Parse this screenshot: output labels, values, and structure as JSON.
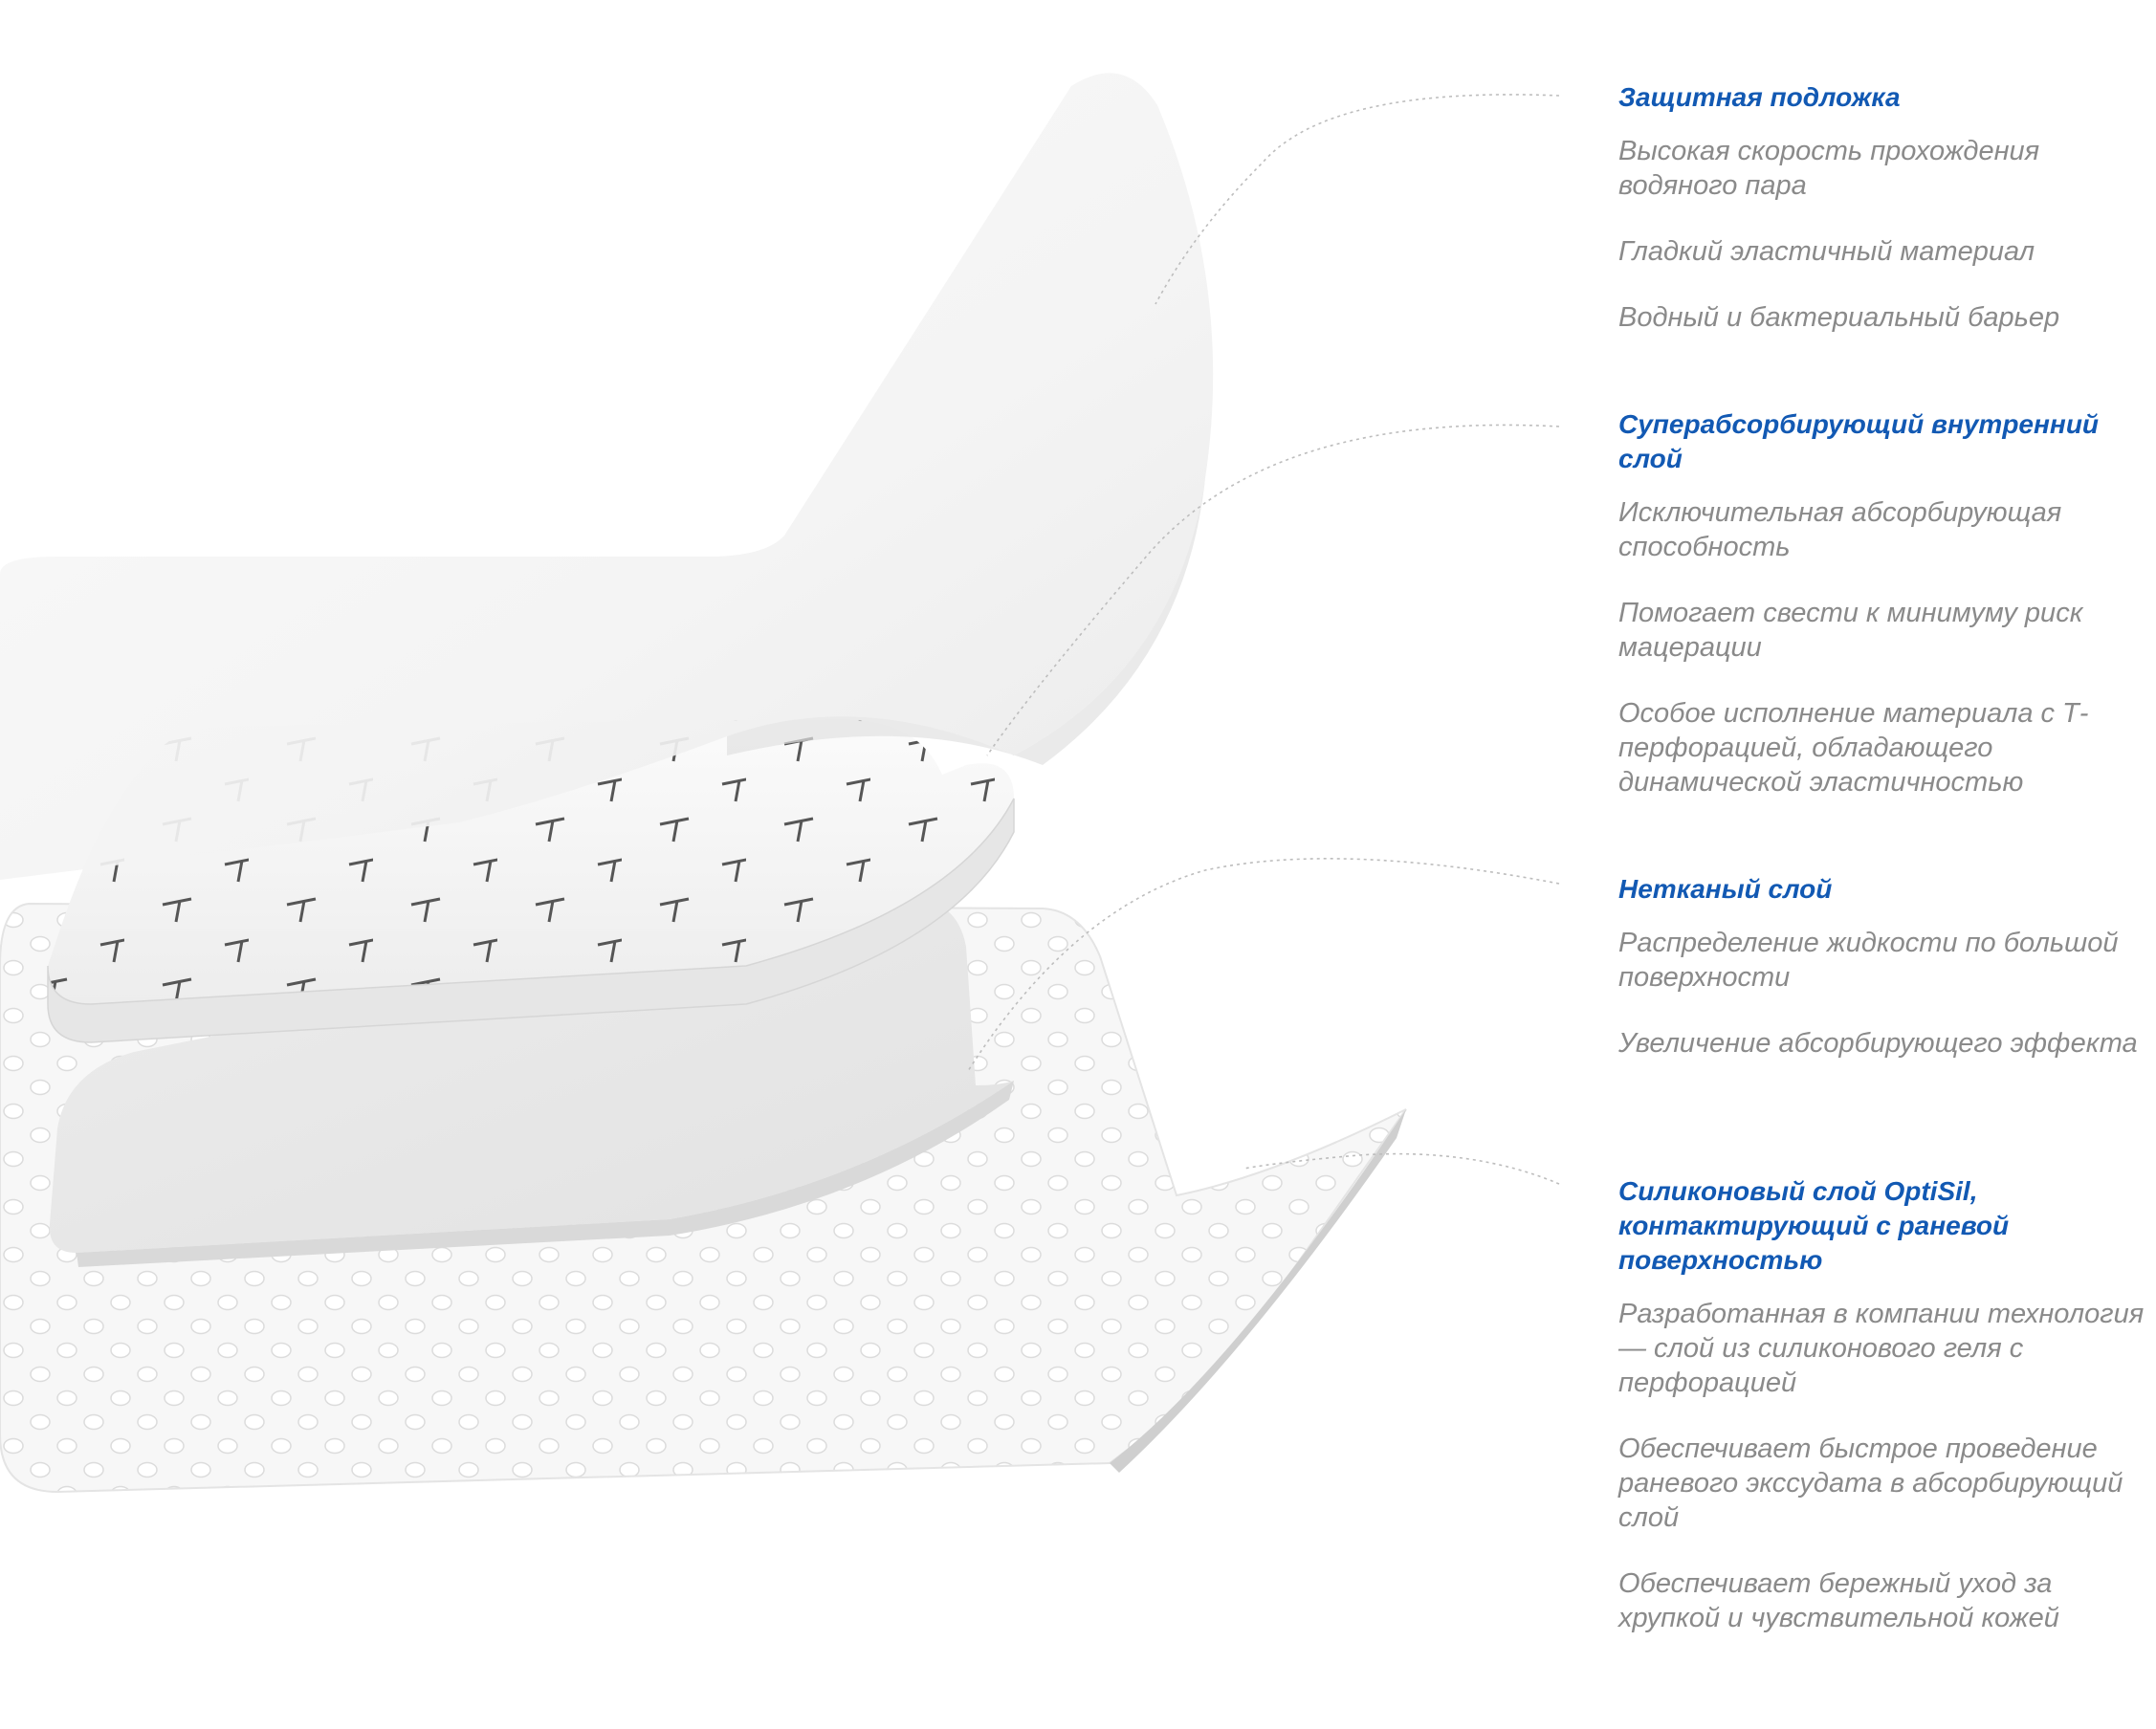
{
  "layers": [
    {
      "id": "protective-backing",
      "title": "Защитная подложка",
      "points": [
        "Высокая скорость прохождения водяного пара",
        "Гладкий эластичный материал",
        "Водный и бактериальный барьер"
      ]
    },
    {
      "id": "superabsorbent-core",
      "title": "Суперабсорбирующий внутренний слой",
      "points": [
        "Исключительная абсорбирующая способность",
        "Помогает свести к минимуму риск мацерации",
        "Особое исполнение материала с Т-перфорацией, обладающего динамической эластичностью"
      ]
    },
    {
      "id": "nonwoven-layer",
      "title": "Нетканый слой",
      "points": [
        "Распределение жидкости по большой поверхности",
        "Увеличение абсорбирующего эффекта"
      ]
    },
    {
      "id": "silicone-layer",
      "title": "Силиконовый слой OptiSil, контактирующий с раневой поверхностью",
      "points": [
        "Разработанная в компании технология — слой из силиконового геля с перфорацией",
        "Обеспечивает быстрое проведение раневого экссудата в абсорбирующий слой",
        "Обеспечивает бережный уход за хрупкой и чувствительной кожей"
      ]
    }
  ],
  "colors": {
    "title": "#1259b3",
    "text": "#8a8a8a",
    "leader_line": "#bdbdbd",
    "layer_fill": "#f5f5f5",
    "layer_shadow": "#d2d2d2"
  }
}
